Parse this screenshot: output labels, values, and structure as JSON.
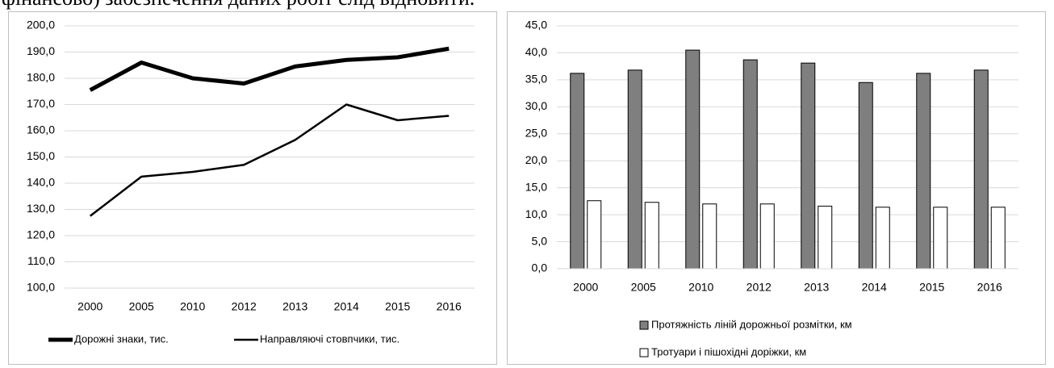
{
  "header_text": "фінансово) забезпечення даних робіт слід відновити.",
  "chart_data": [
    {
      "type": "line",
      "categories": [
        "2000",
        "2005",
        "2010",
        "2012",
        "2013",
        "2014",
        "2015",
        "2016"
      ],
      "series": [
        {
          "name": "Дорожні знаки, тис.",
          "color": "#000000",
          "line_width": 5,
          "values": [
            175.5,
            186.0,
            180.0,
            178.0,
            184.5,
            187.0,
            188.0,
            191.3
          ]
        },
        {
          "name": "Направляючі стовпчики, тис.",
          "color": "#000000",
          "line_width": 2.5,
          "values": [
            127.5,
            142.5,
            144.3,
            147.0,
            156.5,
            170.0,
            164.0,
            165.7
          ]
        }
      ],
      "ylim": [
        100,
        200
      ],
      "yticks": [
        {
          "value": 100,
          "label": "100,0"
        },
        {
          "value": 110,
          "label": "110,0"
        },
        {
          "value": 120,
          "label": "120,0"
        },
        {
          "value": 130,
          "label": "130,0"
        },
        {
          "value": 140,
          "label": "140,0"
        },
        {
          "value": 150,
          "label": "150,0"
        },
        {
          "value": 160,
          "label": "160,0"
        },
        {
          "value": 170,
          "label": "170,0"
        },
        {
          "value": 180,
          "label": "180,0"
        },
        {
          "value": 190,
          "label": "190,0"
        },
        {
          "value": 200,
          "label": "200,0"
        }
      ],
      "grid": true,
      "legend": "bottom"
    },
    {
      "type": "bar",
      "categories": [
        "2000",
        "2005",
        "2010",
        "2012",
        "2013",
        "2014",
        "2015",
        "2016"
      ],
      "series": [
        {
          "name": "Протяжність ліній дорожньої розмітки, км",
          "color": "#7f7f7f",
          "values": [
            36.2,
            36.8,
            40.5,
            38.7,
            38.1,
            34.5,
            36.2,
            36.8
          ]
        },
        {
          "name": "Тротуари і пішохідні доріжки, км",
          "color": "#ffffff",
          "values": [
            12.6,
            12.3,
            12.0,
            12.0,
            11.6,
            11.4,
            11.4,
            11.4
          ]
        }
      ],
      "ylim": [
        0,
        45
      ],
      "yticks": [
        {
          "value": 0,
          "label": "0,0"
        },
        {
          "value": 5,
          "label": "5,0"
        },
        {
          "value": 10,
          "label": "10,0"
        },
        {
          "value": 15,
          "label": "15,0"
        },
        {
          "value": 20,
          "label": "20,0"
        },
        {
          "value": 25,
          "label": "25,0"
        },
        {
          "value": 30,
          "label": "30,0"
        },
        {
          "value": 35,
          "label": "35,0"
        },
        {
          "value": 40,
          "label": "40,0"
        },
        {
          "value": 45,
          "label": "45,0"
        }
      ],
      "grid": true,
      "legend": "bottom"
    }
  ]
}
